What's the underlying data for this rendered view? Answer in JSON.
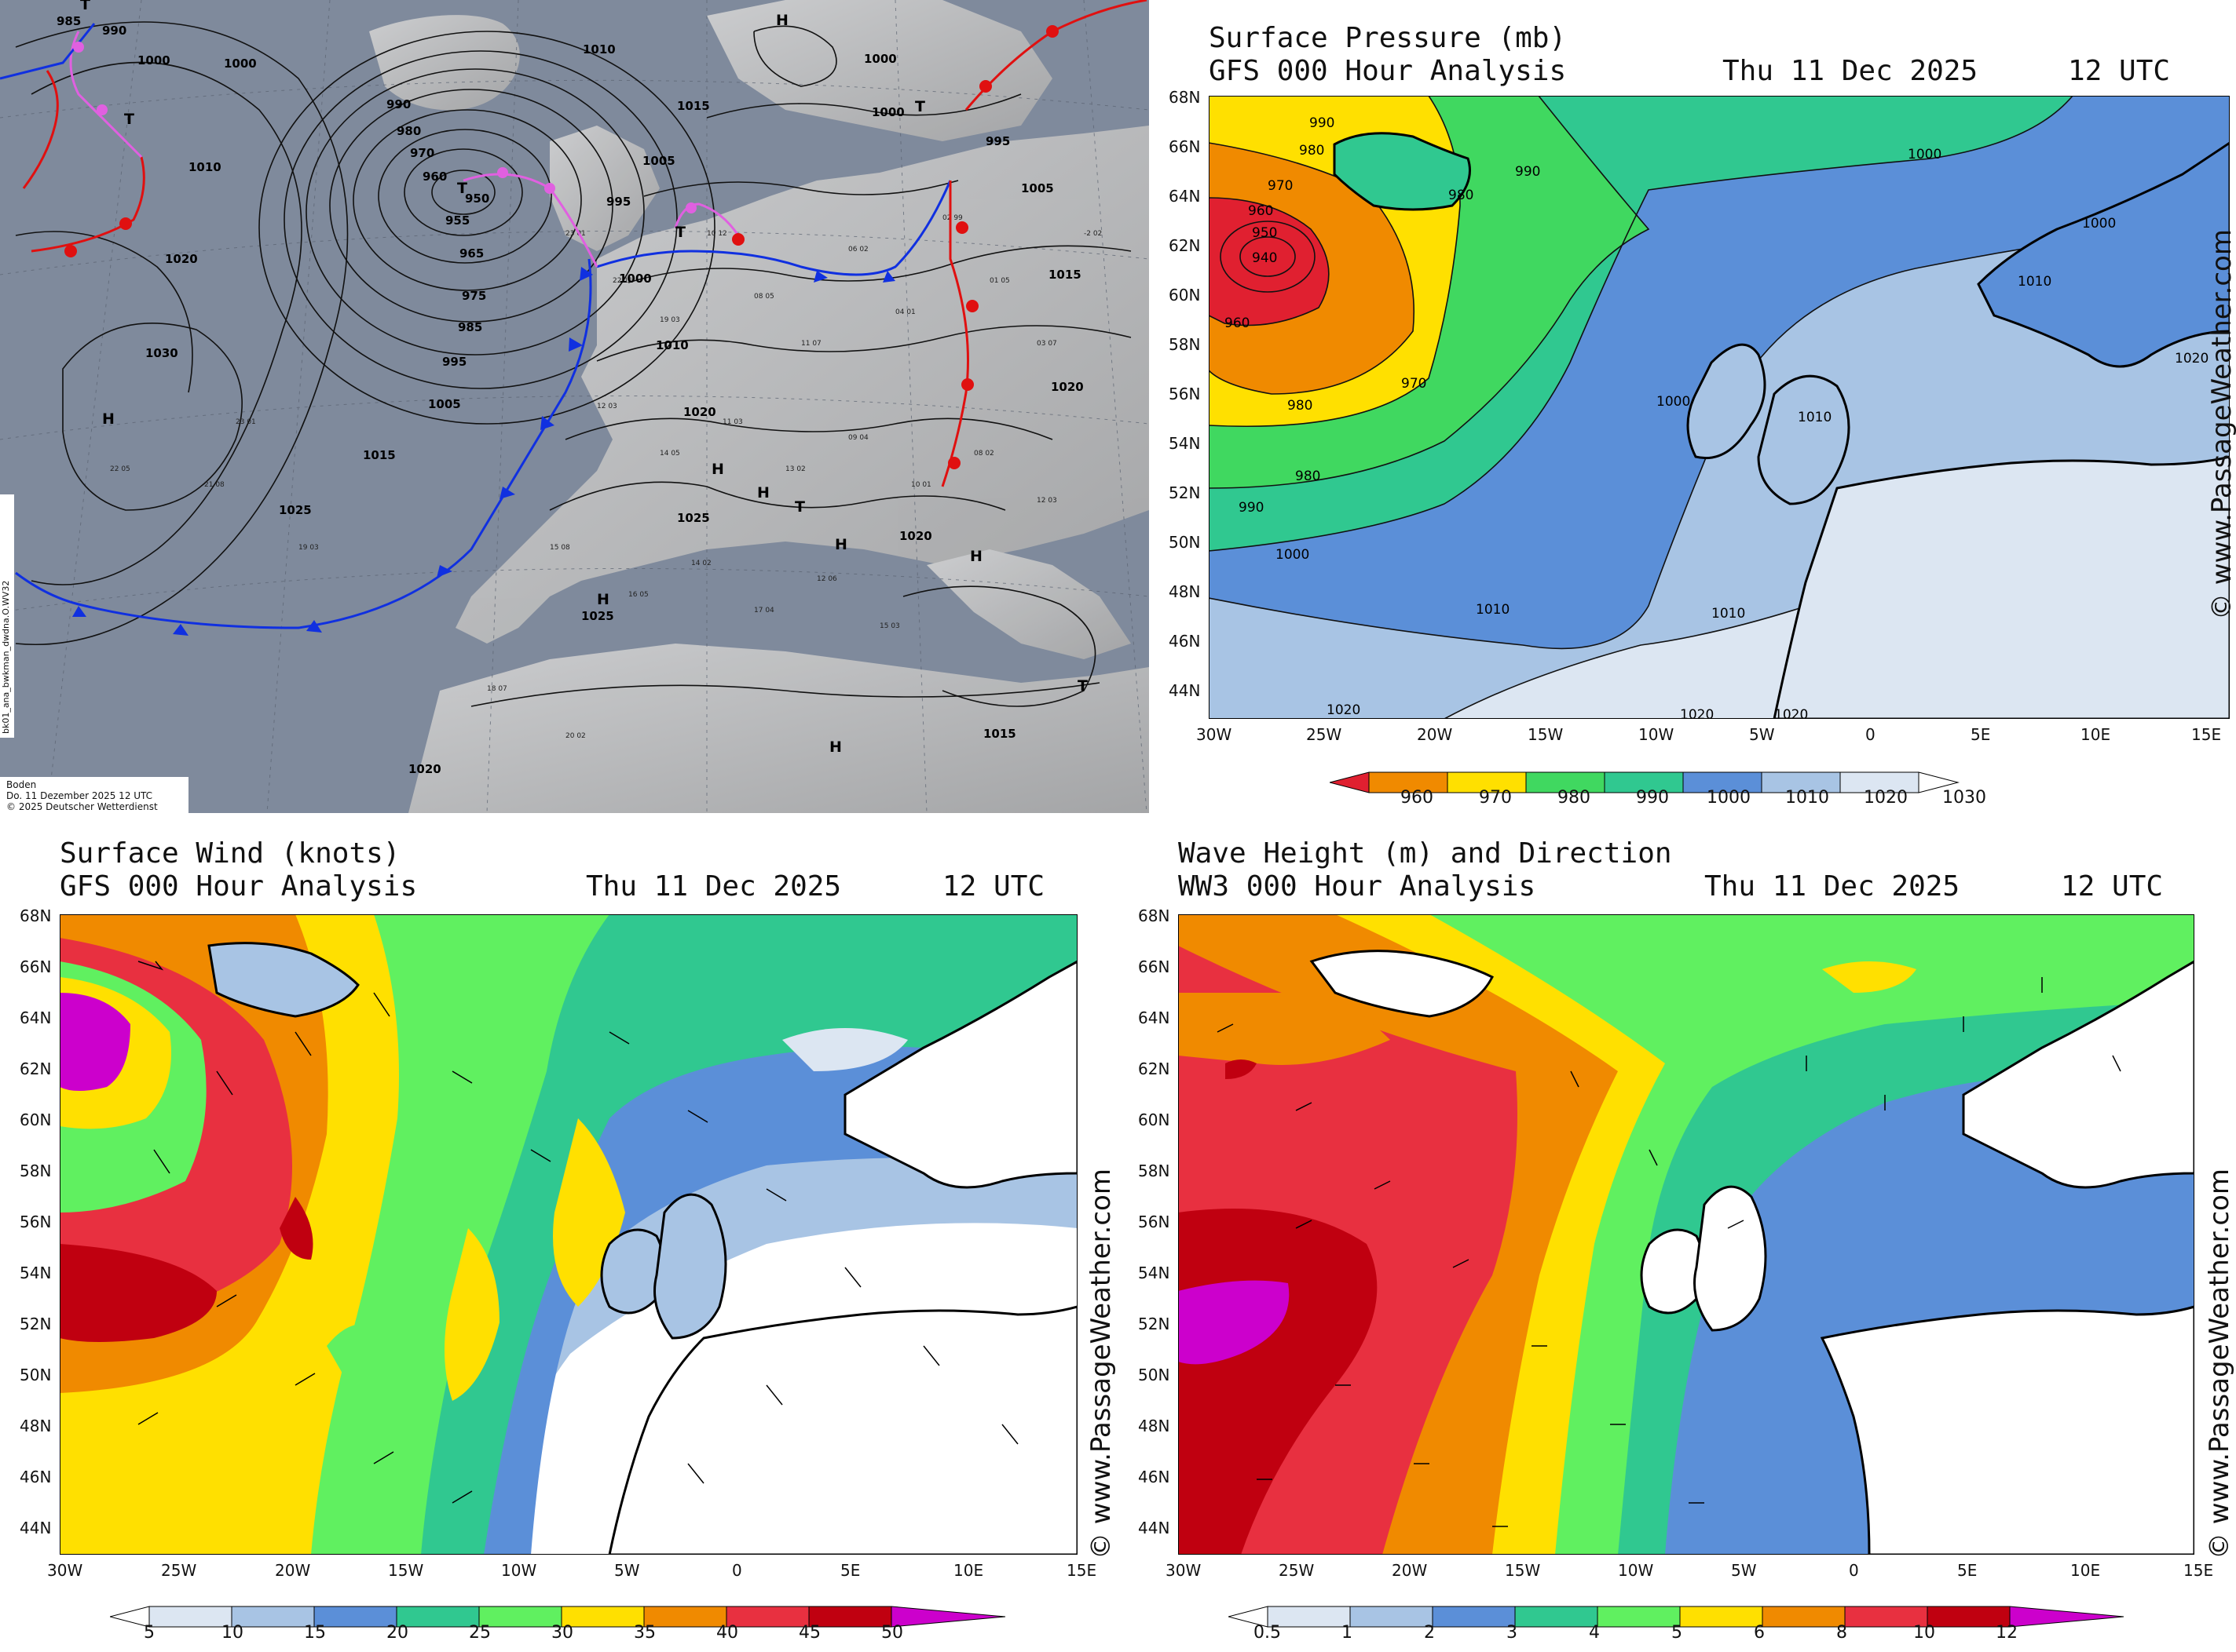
{
  "dwd_map": {
    "label_boden": "Boden",
    "label_date": "Do. 11 Dezember 2025 12 UTC",
    "label_copyright": "© 2025 Deutscher Wetterdienst",
    "side_code": "bk01_ana_bwkman_dwdna.O.WV32",
    "pressure_labels": [
      "985",
      "990",
      "1000",
      "1000",
      "1010",
      "1010",
      "1015",
      "1020",
      "1030",
      "1025",
      "1015",
      "1005",
      "995",
      "985",
      "975",
      "965",
      "955",
      "950",
      "960",
      "970",
      "980",
      "990",
      "1000",
      "1000",
      "1005",
      "995",
      "1010",
      "1020",
      "1025",
      "1025",
      "1020",
      "1015",
      "1020",
      "1005",
      "995",
      "1000",
      "1015",
      "1020"
    ],
    "centers": [
      "T",
      "T",
      "T",
      "T",
      "H",
      "H",
      "H",
      "H",
      "H",
      "H",
      "T",
      "T",
      "H",
      "T",
      "H"
    ]
  },
  "pressure_panel": {
    "title1": "Surface Pressure (mb)",
    "title2": "GFS 000 Hour Analysis",
    "date": "Thu 11 Dec 2025",
    "time": "12 UTC",
    "legend": [
      "960",
      "970",
      "980",
      "990",
      "1000",
      "1010",
      "1020",
      "1030"
    ],
    "contours": [
      "940",
      "950",
      "960",
      "970",
      "980",
      "990",
      "1000",
      "1010",
      "1020",
      "960",
      "980",
      "990",
      "980",
      "990",
      "1000",
      "1000",
      "1010",
      "1000",
      "1010",
      "1020",
      "1010",
      "1020",
      "1020",
      "1020",
      "970",
      "980",
      "1000",
      "1010"
    ]
  },
  "wind_panel": {
    "title1": "Surface Wind (knots)",
    "title2": "GFS 000 Hour Analysis",
    "date": "Thu 11 Dec 2025",
    "time": "12 UTC",
    "legend": [
      "5",
      "10",
      "15",
      "20",
      "25",
      "30",
      "35",
      "40",
      "45",
      "50"
    ]
  },
  "wave_panel": {
    "title1": "Wave Height (m) and Direction",
    "title2": "WW3 000 Hour Analysis",
    "date": "Thu 11 Dec 2025",
    "time": "12 UTC",
    "legend": [
      "0.5",
      "1",
      "2",
      "3",
      "4",
      "5",
      "6",
      "8",
      "10",
      "12"
    ]
  },
  "watermark": "© www.PassageWeather.com",
  "lat_labels": [
    "68N",
    "66N",
    "64N",
    "62N",
    "60N",
    "58N",
    "56N",
    "54N",
    "52N",
    "50N",
    "48N",
    "46N",
    "44N"
  ],
  "lon_labels": [
    "30W",
    "25W",
    "20W",
    "15W",
    "10W",
    "5W",
    "0",
    "5E",
    "10E",
    "15E"
  ],
  "colors": {
    "pressure_scale": [
      "#e02030",
      "#f08a00",
      "#ffe000",
      "#40d860",
      "#30c890",
      "#5b8fd8",
      "#a8c4e4",
      "#dce6f2"
    ],
    "wind_scale": [
      "#ffffff",
      "#dce6f2",
      "#a8c4e4",
      "#5b8fd8",
      "#30c890",
      "#60f060",
      "#ffe000",
      "#f08a00",
      "#e83040",
      "#c00010",
      "#cc00cc"
    ],
    "wave_scale": [
      "#ffffff",
      "#dce6f2",
      "#a8c4e4",
      "#5b8fd8",
      "#30c890",
      "#60f060",
      "#ffe000",
      "#f08a00",
      "#e83040",
      "#c00010",
      "#cc00cc"
    ],
    "cold_front": "#1030e0",
    "warm_front": "#e01010",
    "occluded_front": "#e060e0",
    "land": "#ffffff"
  }
}
